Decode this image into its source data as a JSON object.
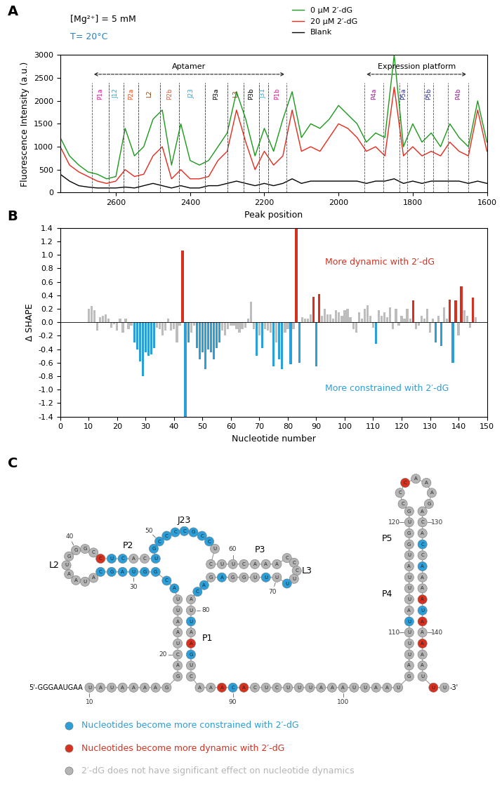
{
  "chart_data": [
    {
      "type": "line",
      "panel_label": "A",
      "xlabel": "Peak position",
      "ylabel": "Fluorescence Intensity (a.u.)",
      "x": [
        2750,
        2725,
        2700,
        2675,
        2650,
        2625,
        2600,
        2575,
        2550,
        2525,
        2500,
        2475,
        2450,
        2425,
        2400,
        2375,
        2350,
        2325,
        2300,
        2275,
        2250,
        2225,
        2200,
        2175,
        2150,
        2125,
        2100,
        2075,
        2050,
        2025,
        2000,
        1975,
        1950,
        1925,
        1900,
        1875,
        1850,
        1825,
        1800,
        1775,
        1750,
        1725,
        1700,
        1675,
        1650,
        1625,
        1600
      ],
      "series": [
        {
          "name": "0 µM 2′-dG",
          "color": "#1a9a1a",
          "values": [
            1200,
            800,
            600,
            450,
            400,
            300,
            350,
            1400,
            800,
            1000,
            1600,
            1800,
            600,
            1500,
            700,
            600,
            700,
            1000,
            1300,
            2200,
            1600,
            800,
            1400,
            900,
            1600,
            2200,
            1200,
            1500,
            1400,
            1600,
            1900,
            1700,
            1500,
            1100,
            1300,
            1200,
            3000,
            1000,
            1500,
            1100,
            1300,
            1000,
            1500,
            1200,
            1000,
            2000,
            1100
          ]
        },
        {
          "name": "20 µM 2′-dG",
          "color": "#e8291c",
          "values": [
            1000,
            600,
            450,
            350,
            250,
            200,
            250,
            500,
            350,
            400,
            800,
            1000,
            300,
            500,
            300,
            300,
            350,
            700,
            900,
            1800,
            1100,
            500,
            900,
            600,
            800,
            1800,
            900,
            1000,
            900,
            1200,
            1500,
            1400,
            1200,
            900,
            1000,
            800,
            2300,
            800,
            1000,
            800,
            900,
            800,
            1100,
            900,
            800,
            1800,
            900
          ]
        },
        {
          "name": "Blank",
          "color": "#000000",
          "values": [
            400,
            250,
            150,
            120,
            100,
            100,
            100,
            120,
            100,
            150,
            200,
            150,
            100,
            150,
            100,
            100,
            150,
            150,
            200,
            250,
            200,
            150,
            200,
            150,
            200,
            300,
            200,
            250,
            250,
            250,
            250,
            250,
            250,
            200,
            250,
            250,
            300,
            200,
            250,
            200,
            250,
            250,
            250,
            250,
            200,
            250,
            200
          ]
        }
      ],
      "xlim": [
        2750,
        1600
      ],
      "xticks": [
        2600,
        2400,
        2200,
        2000,
        1800,
        1600
      ],
      "ylim": [
        0,
        3000
      ],
      "yticks": [
        0,
        500,
        1000,
        1500,
        2000,
        2500,
        3000
      ],
      "legend": "upper center",
      "annotations": [
        {
          "text": "[Mg²⁺] = 5 mM",
          "color": "#000000"
        },
        {
          "text": "T= 20°C",
          "color": "#2a7fc4"
        }
      ],
      "spans": [
        {
          "text": "Aptamer",
          "start": 2665,
          "end": 2140
        },
        {
          "text": "Expression platform",
          "start": 1930,
          "end": 1650
        }
      ],
      "regions": [
        {
          "label": "P1a",
          "start": 2665,
          "end": 2620,
          "color": "#e0248f"
        },
        {
          "label": "J12",
          "start": 2620,
          "end": 2580,
          "color": "#1eaadf"
        },
        {
          "label": "P2a",
          "start": 2580,
          "end": 2540,
          "color": "#f05a28"
        },
        {
          "label": "L2",
          "start": 2540,
          "end": 2480,
          "color": "#8b4513"
        },
        {
          "label": "P2b",
          "start": 2480,
          "end": 2430,
          "color": "#f05a28"
        },
        {
          "label": "J23",
          "start": 2430,
          "end": 2360,
          "color": "#1eaadf"
        },
        {
          "label": "P3a",
          "start": 2360,
          "end": 2300,
          "color": "#000000"
        },
        {
          "label": "L3",
          "start": 2300,
          "end": 2255,
          "color": "#8b4513"
        },
        {
          "label": "P3b",
          "start": 2255,
          "end": 2215,
          "color": "#000000"
        },
        {
          "label": "J31",
          "start": 2215,
          "end": 2190,
          "color": "#1eaadf"
        },
        {
          "label": "P1b",
          "start": 2190,
          "end": 2140,
          "color": "#e0248f"
        },
        {
          "label": "P4a",
          "start": 1930,
          "end": 1880,
          "color": "#92278f"
        },
        {
          "label": "P5a",
          "start": 1835,
          "end": 1815,
          "color": "#2e3192"
        },
        {
          "label": "P5b",
          "start": 1770,
          "end": 1745,
          "color": "#2e3192"
        },
        {
          "label": "P4b",
          "start": 1705,
          "end": 1650,
          "color": "#92278f"
        }
      ]
    },
    {
      "type": "bar",
      "panel_label": "B",
      "xlabel": "Nucleotide number",
      "ylabel": "Δ SHAPE",
      "x": [
        10,
        11,
        12,
        13,
        14,
        15,
        16,
        17,
        18,
        19,
        20,
        21,
        22,
        23,
        24,
        25,
        26,
        27,
        28,
        29,
        30,
        31,
        32,
        33,
        34,
        35,
        36,
        37,
        38,
        39,
        40,
        41,
        42,
        43,
        44,
        45,
        46,
        47,
        48,
        49,
        50,
        51,
        52,
        53,
        54,
        55,
        56,
        57,
        58,
        59,
        60,
        61,
        62,
        63,
        64,
        65,
        66,
        67,
        68,
        69,
        70,
        71,
        72,
        73,
        74,
        75,
        76,
        77,
        78,
        79,
        80,
        81,
        82,
        83,
        84,
        85,
        86,
        87,
        88,
        89,
        90,
        91,
        92,
        93,
        94,
        95,
        96,
        97,
        98,
        99,
        100,
        101,
        102,
        103,
        104,
        105,
        106,
        107,
        108,
        109,
        110,
        111,
        112,
        113,
        114,
        115,
        116,
        117,
        118,
        119,
        120,
        121,
        122,
        123,
        124,
        125,
        126,
        127,
        128,
        129,
        130,
        131,
        132,
        133,
        134,
        135,
        136,
        137,
        138,
        139,
        140,
        141,
        142,
        143,
        144,
        145,
        146
      ],
      "values": [
        0.2,
        0.24,
        0.18,
        -0.12,
        0.08,
        0.1,
        0.12,
        0.05,
        -0.08,
        -0.03,
        -0.12,
        0.05,
        -0.15,
        0.05,
        -0.1,
        -0.05,
        -0.3,
        -0.4,
        -0.58,
        -0.8,
        -0.45,
        -0.5,
        -0.48,
        -0.38,
        -0.08,
        -0.1,
        -0.2,
        -0.12,
        0.05,
        -0.12,
        -0.1,
        -0.3,
        -0.05,
        1.06,
        -1.4,
        -0.3,
        -0.15,
        -0.05,
        -0.38,
        -0.55,
        -0.45,
        -0.7,
        -0.4,
        -0.45,
        -0.55,
        -0.38,
        -0.3,
        -0.12,
        -0.2,
        -0.1,
        -0.05,
        -0.05,
        -0.1,
        -0.15,
        -0.1,
        -0.08,
        0.05,
        0.3,
        -0.1,
        -0.5,
        -0.2,
        -0.38,
        -0.1,
        -0.12,
        -0.15,
        -0.65,
        -0.3,
        -0.55,
        -0.7,
        -0.15,
        -0.1,
        -0.62,
        -0.1,
        1.4,
        -0.6,
        0.08,
        0.05,
        0.05,
        0.12,
        0.38,
        -0.65,
        0.42,
        0.1,
        0.2,
        0.12,
        0.12,
        0.05,
        0.18,
        0.15,
        0.1,
        0.18,
        0.2,
        0.08,
        -0.1,
        -0.15,
        0.15,
        0.05,
        0.2,
        0.25,
        0.1,
        -0.08,
        -0.32,
        0.18,
        0.1,
        0.15,
        0.08,
        0.22,
        -0.1,
        0.2,
        -0.05,
        0.1,
        0.05,
        0.2,
        0.05,
        0.32,
        -0.1,
        -0.05,
        0.1,
        0.05,
        0.2,
        -0.15,
        0.05,
        -0.3,
        0.1,
        -0.35,
        0.22,
        0.05,
        0.34,
        -0.6,
        0.32,
        -0.2,
        0.53,
        0.18,
        0.1,
        -0.08,
        0.37,
        0.08
      ],
      "colors": [
        "#bdbdbd",
        "#bdbdbd",
        "#bdbdbd",
        "#bdbdbd",
        "#bdbdbd",
        "#bdbdbd",
        "#bdbdbd",
        "#bdbdbd",
        "#bdbdbd",
        "#bdbdbd",
        "#bdbdbd",
        "#bdbdbd",
        "#bdbdbd",
        "#bdbdbd",
        "#bdbdbd",
        "#bdbdbd",
        "#2b9fd9",
        "#2b9fd9",
        "#2b9fd9",
        "#2b9fd9",
        "#2b9fd9",
        "#2b9fd9",
        "#2b9fd9",
        "#2b9fd9",
        "#bdbdbd",
        "#bdbdbd",
        "#bdbdbd",
        "#bdbdbd",
        "#bdbdbd",
        "#bdbdbd",
        "#bdbdbd",
        "#bdbdbd",
        "#bdbdbd",
        "#d7301f",
        "#2b9fd9",
        "#2b9fd9",
        "#bdbdbd",
        "#bdbdbd",
        "#2b9fd9",
        "#2b9fd9",
        "#2b9fd9",
        "#2b9fd9",
        "#2b9fd9",
        "#2b9fd9",
        "#2b9fd9",
        "#2b9fd9",
        "#2b9fd9",
        "#bdbdbd",
        "#bdbdbd",
        "#bdbdbd",
        "#bdbdbd",
        "#bdbdbd",
        "#bdbdbd",
        "#bdbdbd",
        "#bdbdbd",
        "#bdbdbd",
        "#bdbdbd",
        "#bdbdbd",
        "#bdbdbd",
        "#2b9fd9",
        "#bdbdbd",
        "#2b9fd9",
        "#bdbdbd",
        "#bdbdbd",
        "#bdbdbd",
        "#2b9fd9",
        "#bdbdbd",
        "#2b9fd9",
        "#2b9fd9",
        "#bdbdbd",
        "#bdbdbd",
        "#2b9fd9",
        "#bdbdbd",
        "#d7301f",
        "#2b9fd9",
        "#bdbdbd",
        "#bdbdbd",
        "#bdbdbd",
        "#bdbdbd",
        "#d7301f",
        "#2b9fd9",
        "#d7301f",
        "#bdbdbd",
        "#bdbdbd",
        "#bdbdbd",
        "#bdbdbd",
        "#bdbdbd",
        "#bdbdbd",
        "#bdbdbd",
        "#bdbdbd",
        "#bdbdbd",
        "#bdbdbd",
        "#bdbdbd",
        "#bdbdbd",
        "#bdbdbd",
        "#bdbdbd",
        "#bdbdbd",
        "#bdbdbd",
        "#bdbdbd",
        "#bdbdbd",
        "#bdbdbd",
        "#2b9fd9",
        "#bdbdbd",
        "#bdbdbd",
        "#bdbdbd",
        "#bdbdbd",
        "#bdbdbd",
        "#bdbdbd",
        "#bdbdbd",
        "#bdbdbd",
        "#bdbdbd",
        "#bdbdbd",
        "#bdbdbd",
        "#bdbdbd",
        "#d7301f",
        "#bdbdbd",
        "#bdbdbd",
        "#bdbdbd",
        "#bdbdbd",
        "#bdbdbd",
        "#bdbdbd",
        "#bdbdbd",
        "#2b9fd9",
        "#bdbdbd",
        "#2b9fd9",
        "#bdbdbd",
        "#bdbdbd",
        "#d7301f",
        "#2b9fd9",
        "#d7301f",
        "#bdbdbd",
        "#d7301f",
        "#bdbdbd",
        "#bdbdbd",
        "#bdbdbd",
        "#d7301f",
        "#bdbdbd"
      ],
      "xlim": [
        0,
        150
      ],
      "xticks": [
        0,
        10,
        20,
        30,
        40,
        50,
        60,
        70,
        80,
        90,
        100,
        110,
        120,
        130,
        140,
        150
      ],
      "ylim": [
        -1.4,
        1.4
      ],
      "yticks": [
        -1.4,
        -1.2,
        -1.0,
        -0.8,
        -0.6,
        -0.4,
        -0.2,
        0.0,
        0.2,
        0.4,
        0.6,
        0.8,
        1.0,
        1.2,
        1.4
      ],
      "annotations": [
        {
          "text": "More dynamic with 2′-dG",
          "color": "#d7301f"
        },
        {
          "text": "More constrained with 2′-dG",
          "color": "#2b9fd9"
        }
      ]
    }
  ],
  "diagram": {
    "panel_label": "C",
    "five_prime": "5'-GGGAAUGAA",
    "three_prime": "-3'",
    "sequence": [
      "UAUAAAAG",
      "GACUAAUU",
      "AC",
      "GGUAGC",
      "AUAAUGGGC",
      "CUCACU",
      "GCCCCGCCU",
      "CUUCAAA",
      "CCCUU",
      "UUUGGAG",
      "AC",
      "AUUAAGUC",
      "AAACACUCUUUAAAUUAAU",
      "GAUUUUAUUUA",
      "UGGUG",
      "CCCAAAG",
      "ACACC",
      "AAAAUAAAAAU",
      "UU"
    ],
    "number_labels": [
      10,
      20,
      30,
      40,
      50,
      60,
      70,
      80,
      90,
      100,
      110,
      120,
      130,
      140
    ],
    "structure_labels": [
      "P1",
      "P2",
      "L2",
      "J23",
      "P3",
      "L3",
      "P4",
      "P5"
    ],
    "constrained": [
      26,
      27,
      28,
      29,
      30,
      31,
      32,
      33,
      44,
      45,
      48,
      49,
      50,
      51,
      52,
      53,
      54,
      55,
      56,
      69,
      71,
      75,
      77,
      78,
      81,
      84,
      90,
      111,
      132,
      134,
      138
    ],
    "dynamic": [
      43,
      83,
      89,
      91,
      124,
      137,
      139,
      141,
      145
    ],
    "key": [
      {
        "text": "Nucleotides become more constrained with 2′-dG",
        "color": "#2b9fd9"
      },
      {
        "text": "Nucleotides become more dynamic with 2′-dG",
        "color": "#d7301f"
      },
      {
        "text": "2′-dG does not have significant effect on nucleotide dynamics",
        "color": "#b5b5b5"
      }
    ]
  }
}
